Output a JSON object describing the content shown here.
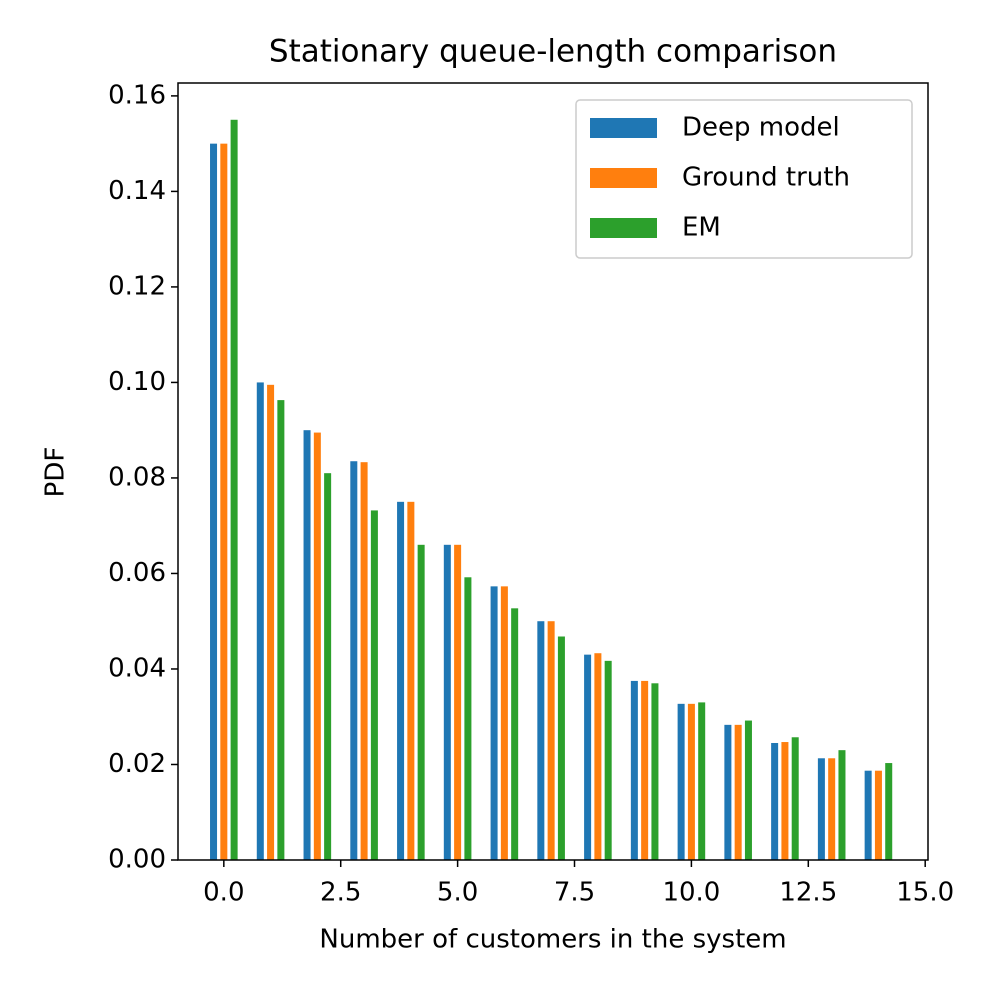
{
  "chart_data": {
    "type": "bar",
    "title": "Stationary queue-length comparison",
    "xlabel": "Number of customers in the system",
    "ylabel": "PDF",
    "x": [
      0,
      1,
      2,
      3,
      4,
      5,
      6,
      7,
      8,
      9,
      10,
      11,
      12,
      13,
      14
    ],
    "series": [
      {
        "name": "Deep model",
        "color": "#1f77b4",
        "values": [
          0.15,
          0.1,
          0.09,
          0.0835,
          0.075,
          0.066,
          0.0573,
          0.05,
          0.043,
          0.0375,
          0.0327,
          0.0283,
          0.0245,
          0.0213,
          0.0187
        ]
      },
      {
        "name": "Ground truth",
        "color": "#ff7f0e",
        "values": [
          0.15,
          0.0995,
          0.0895,
          0.0833,
          0.075,
          0.066,
          0.0573,
          0.05,
          0.0433,
          0.0375,
          0.0327,
          0.0283,
          0.0247,
          0.0213,
          0.0187
        ]
      },
      {
        "name": "EM",
        "color": "#2ca02c",
        "values": [
          0.155,
          0.0963,
          0.081,
          0.0732,
          0.066,
          0.0592,
          0.0527,
          0.0468,
          0.0417,
          0.037,
          0.033,
          0.0292,
          0.0257,
          0.023,
          0.0203
        ]
      }
    ],
    "xlim": [
      -0.98,
      15.06
    ],
    "ylim": [
      0,
      0.1627
    ],
    "xticks": [
      {
        "value": 0,
        "label": "0.0"
      },
      2.5,
      {
        "value": 5,
        "label": "5.0"
      },
      7.5,
      {
        "value": 10,
        "label": "10.0"
      },
      12.5,
      {
        "value": 15,
        "label": "15.0"
      }
    ],
    "yticks": [
      {
        "value": 0,
        "label": "0.00"
      },
      0.02,
      0.04,
      0.06,
      0.08,
      {
        "value": 0.1,
        "label": "0.10"
      },
      0.12,
      0.14,
      {
        "value": 0.16,
        "label": "0.16"
      }
    ],
    "grid": false,
    "legend": "upper right"
  }
}
